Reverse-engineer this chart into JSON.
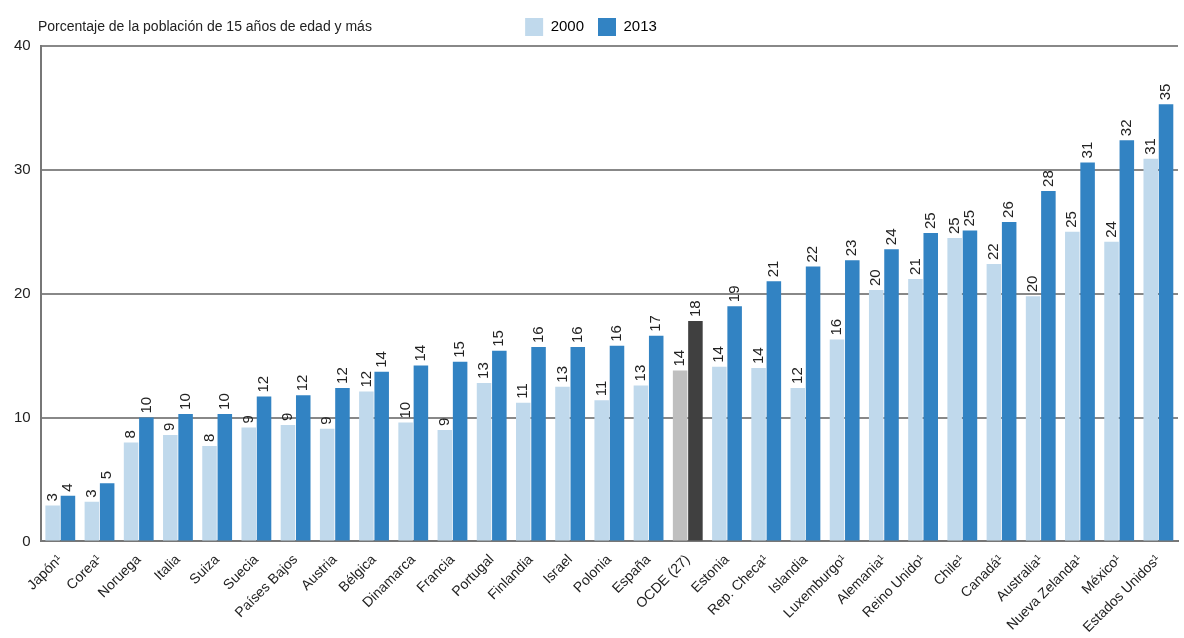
{
  "chart_data": {
    "type": "bar",
    "ylabel": "Porcentaje de la población de 15 años de edad y más",
    "categories": [
      "Japón¹",
      "Corea¹",
      "Noruega",
      "Italia",
      "Suiza",
      "Suecia",
      "Países Bajos",
      "Austria",
      "Bélgica",
      "Dinamarca",
      "Francia",
      "Portugal",
      "Finlandia",
      "Israel",
      "Polonia",
      "España",
      "OCDE (27)",
      "Estonia",
      "Rep. Checa¹",
      "Islandia",
      "Luxemburgo¹",
      "Alemania¹",
      "Reino Unido¹",
      "Chile¹",
      "Canadá¹",
      "Australia¹",
      "Nueva Zelanda¹",
      "México¹",
      "Estados Unidos¹"
    ],
    "series": [
      {
        "name": "2000",
        "color": "#c0d9ec",
        "colors": [
          "#c0d9ec",
          "#c0d9ec",
          "#c0d9ec",
          "#c0d9ec",
          "#c0d9ec",
          "#c0d9ec",
          "#c0d9ec",
          "#c0d9ec",
          "#c0d9ec",
          "#c0d9ec",
          "#c0d9ec",
          "#c0d9ec",
          "#c0d9ec",
          "#c0d9ec",
          "#c0d9ec",
          "#c0d9ec",
          "#bfbfbf",
          "#c0d9ec",
          "#c0d9ec",
          "#c0d9ec",
          "#c0d9ec",
          "#c0d9ec",
          "#c0d9ec",
          "#c0d9ec",
          "#c0d9ec",
          "#c0d9ec",
          "#c0d9ec",
          "#c0d9ec",
          "#c0d9ec"
        ],
        "values": [
          2.9,
          3.2,
          8.0,
          8.6,
          7.7,
          9.2,
          9.4,
          9.1,
          12.1,
          9.6,
          9.0,
          12.8,
          11.2,
          12.5,
          11.4,
          12.6,
          13.8,
          14.1,
          14.0,
          12.4,
          16.3,
          20.3,
          21.2,
          24.5,
          22.4,
          19.8,
          25.0,
          24.2,
          30.9
        ],
        "value_labels": [
          "3",
          "3",
          "8",
          "9",
          "8",
          "9",
          "9",
          "9",
          "12",
          "10",
          "9",
          "13",
          "11",
          "13",
          "11",
          "13",
          "14",
          "14",
          "14",
          "12",
          "16",
          "20",
          "21",
          "25",
          "22",
          "20",
          "25",
          "24",
          "31"
        ]
      },
      {
        "name": "2013",
        "color": "#3283c3",
        "colors": [
          "#3283c3",
          "#3283c3",
          "#3283c3",
          "#3283c3",
          "#3283c3",
          "#3283c3",
          "#3283c3",
          "#3283c3",
          "#3283c3",
          "#3283c3",
          "#3283c3",
          "#3283c3",
          "#3283c3",
          "#3283c3",
          "#3283c3",
          "#3283c3",
          "#404040",
          "#3283c3",
          "#3283c3",
          "#3283c3",
          "#3283c3",
          "#3283c3",
          "#3283c3",
          "#3283c3",
          "#3283c3",
          "#3283c3",
          "#3283c3",
          "#3283c3",
          "#3283c3"
        ],
        "values": [
          3.7,
          4.7,
          10.0,
          10.3,
          10.3,
          11.7,
          11.8,
          12.4,
          13.7,
          14.2,
          14.5,
          15.4,
          15.7,
          15.7,
          15.8,
          16.6,
          17.8,
          19.0,
          21.0,
          22.2,
          22.7,
          23.6,
          24.9,
          25.1,
          25.8,
          28.3,
          30.6,
          32.4,
          35.3
        ],
        "value_labels": [
          "4",
          "5",
          "10",
          "10",
          "10",
          "12",
          "12",
          "12",
          "14",
          "14",
          "15",
          "15",
          "16",
          "16",
          "16",
          "17",
          "18",
          "19",
          "21",
          "22",
          "23",
          "24",
          "25",
          "25",
          "26",
          "28",
          "31",
          "32",
          "35"
        ]
      }
    ],
    "ylim": [
      0,
      40
    ],
    "yticks": [
      0,
      10,
      20,
      30,
      40
    ],
    "grid": "y",
    "legend": "top"
  }
}
